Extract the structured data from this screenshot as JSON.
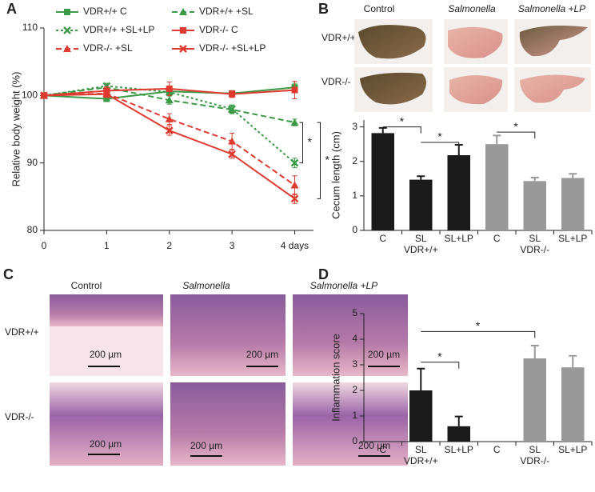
{
  "panels": [
    "A",
    "B",
    "C",
    "D"
  ],
  "photos": {
    "columns": [
      "Control",
      "Salmonella",
      "Salmonella +LP"
    ],
    "rows": [
      "VDR+/+",
      "VDR-/-"
    ]
  },
  "histology": {
    "columns": [
      "Control",
      "Salmonella",
      "Salmonella +LP"
    ],
    "rows": [
      "VDR+/+",
      "VDR-/-"
    ],
    "scale_bars": [
      "200 µm",
      "200 µm",
      "200 µm",
      "200 µm",
      "200 µm",
      "200 µm"
    ]
  },
  "chart_data": [
    {
      "type": "line",
      "ylabel": "Relative body weight (%)",
      "x": [
        0,
        1,
        2,
        3,
        4
      ],
      "xlim": [
        0,
        4.3
      ],
      "xticks": [
        0,
        1,
        2,
        3,
        {
          "value": 4,
          "label": "4 days"
        }
      ],
      "ylim": [
        80,
        110
      ],
      "yticks": [
        80,
        90,
        100,
        110
      ],
      "series": [
        {
          "name": "VDR+/+ C",
          "color": "#3a9a46",
          "linestyle": "solid",
          "marker": "square",
          "values": [
            100,
            99.5,
            100.6,
            100.3,
            101.2
          ],
          "errors": [
            0,
            0.4,
            0.5,
            0.4,
            0.6
          ]
        },
        {
          "name": "VDR+/+ +SL",
          "color": "#3a9a46",
          "linestyle": "dashed",
          "marker": "triangle",
          "values": [
            100,
            101.2,
            99.3,
            97.9,
            96.0
          ],
          "errors": [
            0,
            0.4,
            0.6,
            0.6,
            0.5
          ]
        },
        {
          "name": "VDR+/+ +SL+LP",
          "color": "#3a9a46",
          "linestyle": "dotted",
          "marker": "x",
          "values": [
            100,
            101.4,
            100.5,
            98.0,
            90.0
          ],
          "errors": [
            0,
            0.4,
            0.5,
            0.6,
            0.7
          ]
        },
        {
          "name": "VDR-/- C",
          "color": "#e03a30",
          "linestyle": "solid",
          "marker": "square",
          "values": [
            100,
            100.7,
            101.0,
            100.2,
            100.8
          ],
          "errors": [
            0,
            0.6,
            1.0,
            0.5,
            1.3
          ]
        },
        {
          "name": "VDR-/- +SL",
          "color": "#e03a30",
          "linestyle": "dashed",
          "marker": "triangle",
          "values": [
            100,
            100.3,
            96.5,
            93.2,
            86.7
          ],
          "errors": [
            0,
            0.5,
            0.8,
            1.2,
            1.4
          ]
        },
        {
          "name": "VDR-/- +SL+LP",
          "color": "#e03a30",
          "linestyle": "solid",
          "marker": "x",
          "values": [
            100,
            100.2,
            94.8,
            91.3,
            84.7
          ],
          "errors": [
            0,
            0.5,
            0.7,
            0.6,
            0.7
          ]
        }
      ],
      "annotations": [
        "*",
        "*"
      ]
    },
    {
      "type": "bar",
      "ylabel": "Cecum length (cm)",
      "categories": [
        "C",
        "SL",
        "SL+LP",
        "C",
        "SL",
        "SL+LP"
      ],
      "groups": [
        "VDR+/+",
        "VDR-/-"
      ],
      "values": [
        2.82,
        1.47,
        2.18,
        2.5,
        1.43,
        1.52
      ],
      "errors": [
        0.15,
        0.1,
        0.3,
        0.25,
        0.1,
        0.12
      ],
      "colors": [
        "#1a1a1a",
        "#1a1a1a",
        "#1a1a1a",
        "#999999",
        "#999999",
        "#999999"
      ],
      "ylim": [
        0,
        3.2
      ],
      "yticks": [
        0,
        1,
        2,
        3
      ],
      "annotations": [
        "*",
        "*",
        "*"
      ]
    },
    {
      "type": "bar",
      "ylabel": "Inflammation score",
      "categories": [
        "C",
        "SL",
        "SL+LP",
        "C",
        "SL",
        "SL+LP"
      ],
      "groups": [
        "VDR+/+",
        "VDR-/-"
      ],
      "values": [
        0,
        2.0,
        0.6,
        0,
        3.25,
        2.9
      ],
      "errors": [
        0,
        0.85,
        0.38,
        0,
        0.5,
        0.45
      ],
      "colors": [
        "#1a1a1a",
        "#1a1a1a",
        "#1a1a1a",
        "#999999",
        "#999999",
        "#999999"
      ],
      "ylim": [
        0,
        5
      ],
      "yticks": [
        0,
        1,
        2,
        3,
        4,
        5
      ],
      "annotations": [
        "*",
        "*"
      ]
    }
  ]
}
